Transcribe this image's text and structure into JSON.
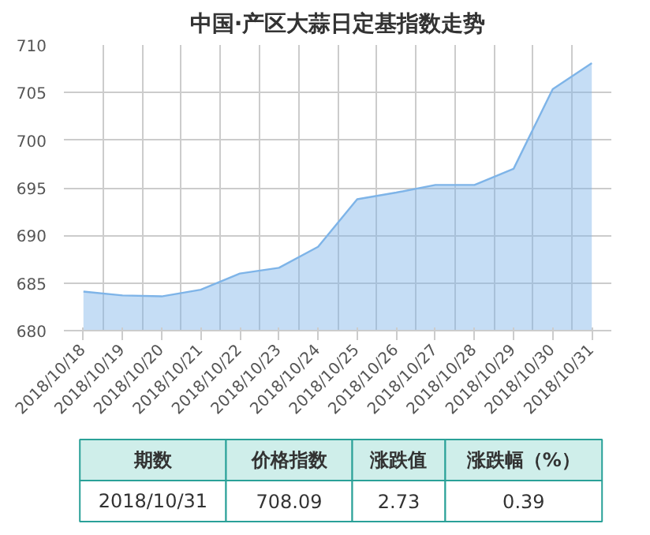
{
  "chart_data": {
    "type": "area",
    "title": "中国·产区大蒜日定基指数走势",
    "categories": [
      "2018/10/18",
      "2018/10/19",
      "2018/10/20",
      "2018/10/21",
      "2018/10/22",
      "2018/10/23",
      "2018/10/24",
      "2018/10/25",
      "2018/10/26",
      "2018/10/27",
      "2018/10/28",
      "2018/10/29",
      "2018/10/30",
      "2018/10/31"
    ],
    "series": [
      {
        "color": "#7eb4e8",
        "values": [
          684.1,
          683.7,
          683.6,
          684.3,
          686.0,
          686.6,
          688.8,
          693.8,
          694.5,
          695.3,
          695.3,
          697.0,
          705.36,
          708.09
        ]
      }
    ],
    "ylim": [
      680,
      710
    ],
    "yticks": [
      680,
      685,
      690,
      695,
      700,
      705,
      710
    ],
    "grid": true,
    "annotations": [
      "期数",
      "价格指数",
      "涨跌值",
      "涨跌幅（%）",
      "2018/10/31",
      "708.09",
      "2.73",
      "0.39"
    ]
  }
}
